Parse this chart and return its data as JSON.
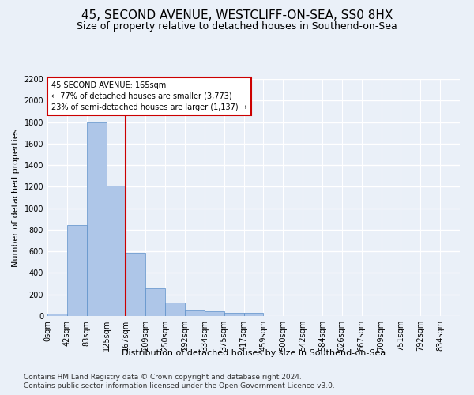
{
  "title": "45, SECOND AVENUE, WESTCLIFF-ON-SEA, SS0 8HX",
  "subtitle": "Size of property relative to detached houses in Southend-on-Sea",
  "xlabel": "Distribution of detached houses by size in Southend-on-Sea",
  "ylabel": "Number of detached properties",
  "bin_labels": [
    "0sqm",
    "42sqm",
    "83sqm",
    "125sqm",
    "167sqm",
    "209sqm",
    "250sqm",
    "292sqm",
    "334sqm",
    "375sqm",
    "417sqm",
    "459sqm",
    "500sqm",
    "542sqm",
    "584sqm",
    "626sqm",
    "667sqm",
    "709sqm",
    "751sqm",
    "792sqm",
    "834sqm"
  ],
  "bar_heights": [
    25,
    845,
    1800,
    1210,
    590,
    260,
    125,
    50,
    45,
    32,
    27,
    0,
    0,
    0,
    0,
    0,
    0,
    0,
    0,
    0,
    0
  ],
  "bar_color": "#aec6e8",
  "bar_edge_color": "#5b8fc9",
  "background_color": "#eaf0f8",
  "grid_color": "#ffffff",
  "ylim": [
    0,
    2200
  ],
  "yticks": [
    0,
    200,
    400,
    600,
    800,
    1000,
    1200,
    1400,
    1600,
    1800,
    2000,
    2200
  ],
  "vline_x": 4,
  "vline_color": "#cc0000",
  "annotation_text": "45 SECOND AVENUE: 165sqm\n← 77% of detached houses are smaller (3,773)\n23% of semi-detached houses are larger (1,137) →",
  "annotation_box_color": "#ffffff",
  "annotation_box_edge": "#cc0000",
  "footnote1": "Contains HM Land Registry data © Crown copyright and database right 2024.",
  "footnote2": "Contains public sector information licensed under the Open Government Licence v3.0.",
  "title_fontsize": 11,
  "subtitle_fontsize": 9,
  "label_fontsize": 8,
  "tick_fontsize": 7,
  "footnote_fontsize": 6.5
}
